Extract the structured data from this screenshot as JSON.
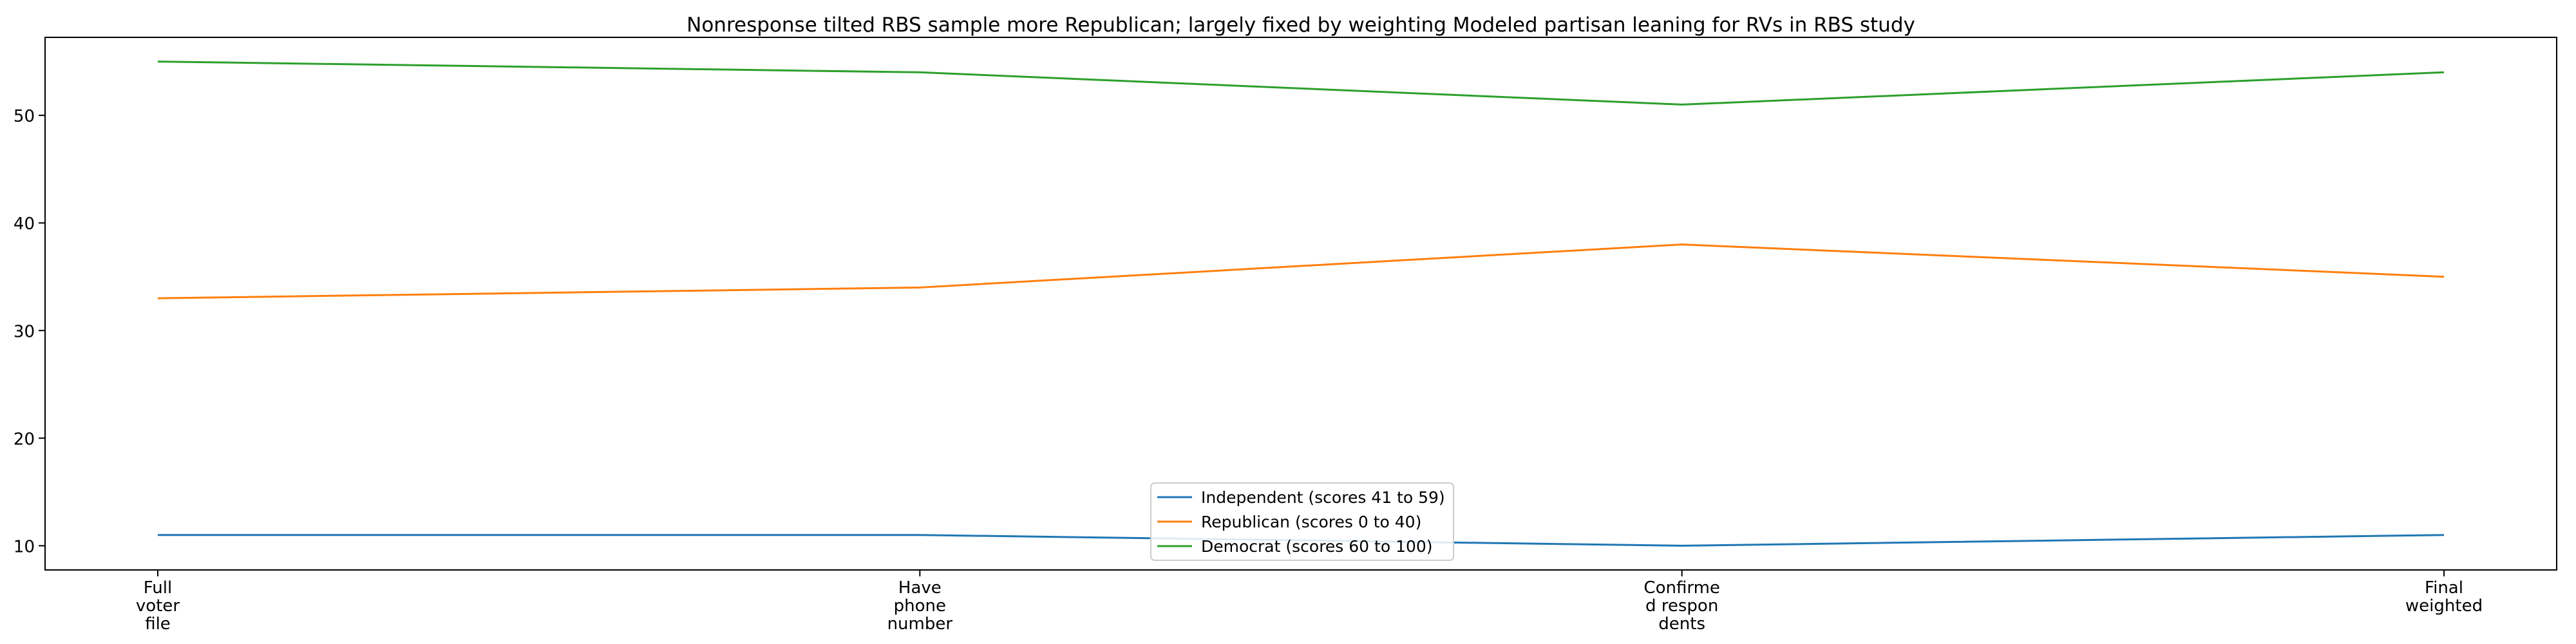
{
  "chart_data": {
    "type": "line",
    "title": "Nonresponse tilted RBS sample more Republican; largely fixed by weighting Modeled partisan leaning for RVs in RBS study",
    "xlabel": "",
    "ylabel": "",
    "categories": [
      [
        "Full",
        "voter",
        "file"
      ],
      [
        "Have",
        "phone",
        "number"
      ],
      [
        "Confirme",
        "d respon",
        "dents"
      ],
      [
        "Final",
        "weighted"
      ]
    ],
    "yticks": [
      10,
      20,
      30,
      40,
      50
    ],
    "ylim": [
      7.75,
      57.25
    ],
    "grid": false,
    "legend_position": "bottom-center",
    "series": [
      {
        "name": "Independent (scores 41 to 59)",
        "color": "#1f77b4",
        "values": [
          11,
          11,
          10,
          11
        ]
      },
      {
        "name": "Republican (scores 0 to 40)",
        "color": "#ff7f0e",
        "values": [
          33,
          34,
          38,
          35
        ]
      },
      {
        "name": "Democrat (scores 60 to 100)",
        "color": "#2ca02c",
        "values": [
          55,
          54,
          51,
          54
        ]
      }
    ]
  }
}
